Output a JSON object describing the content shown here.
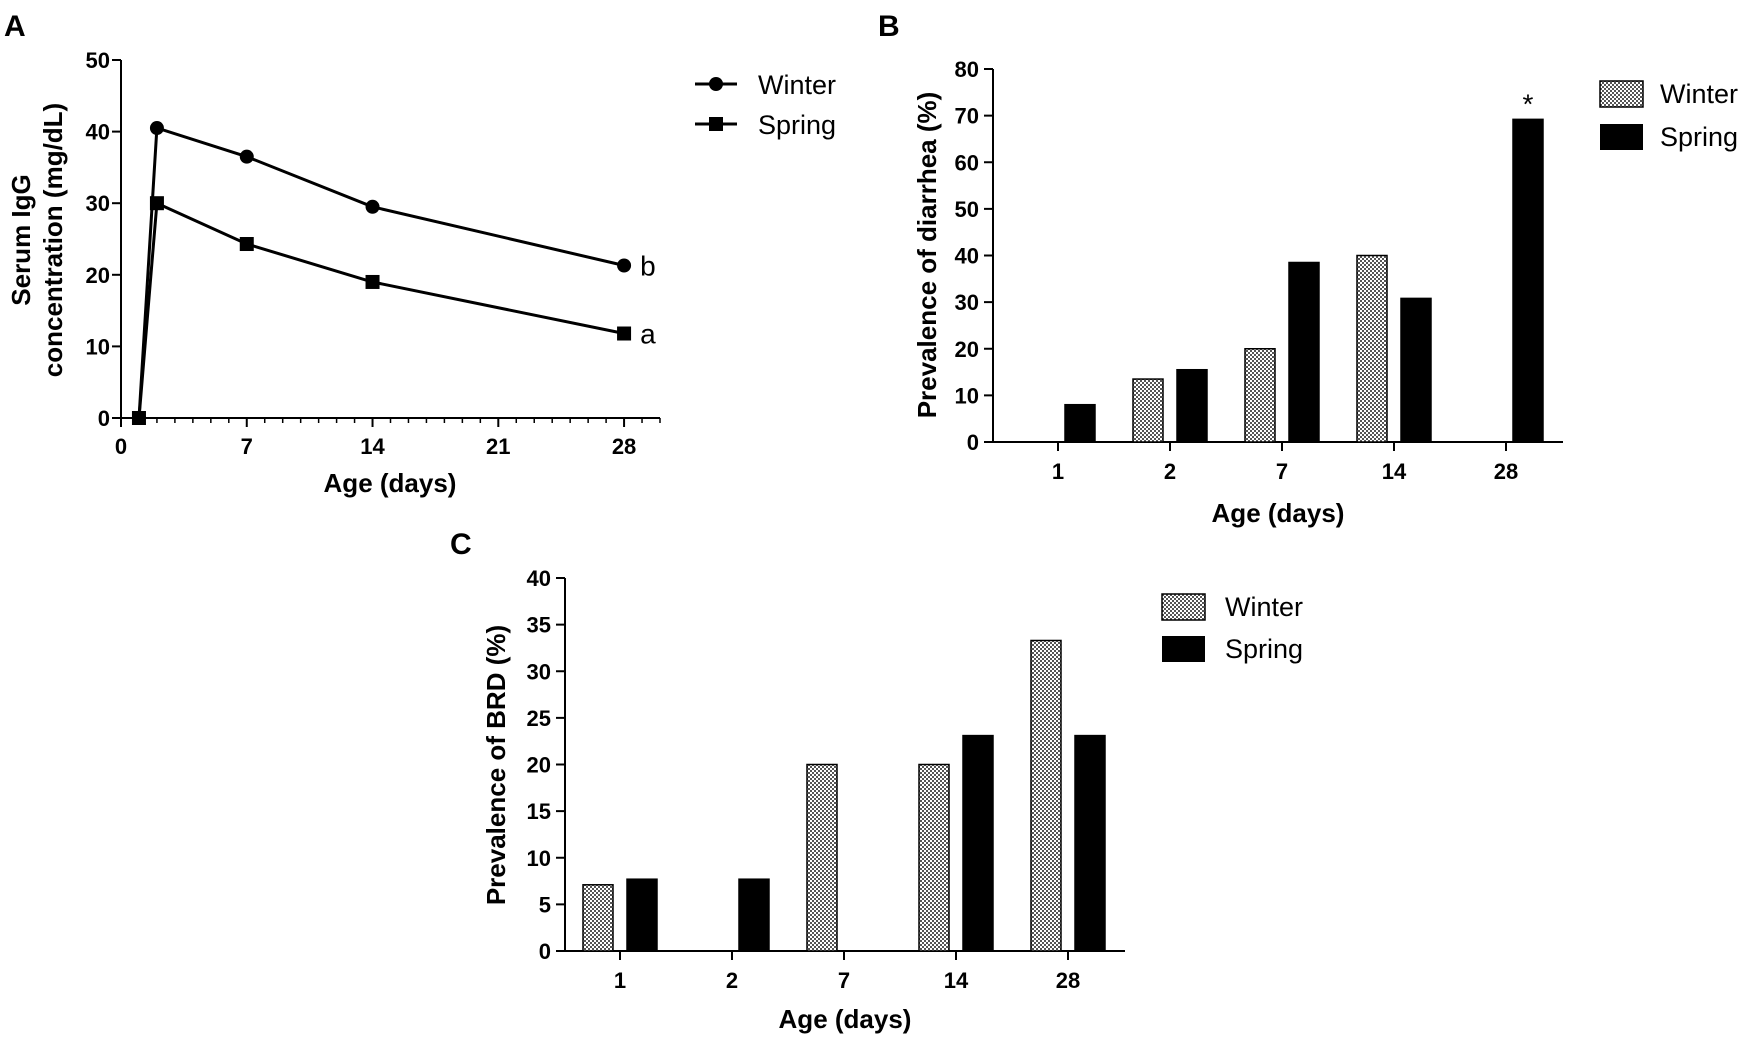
{
  "panels": {
    "A": {
      "letter": "A"
    },
    "B": {
      "letter": "B"
    },
    "C": {
      "letter": "C"
    }
  },
  "colors": {
    "winter": "#c8c8c8",
    "spring": "#000000",
    "axis": "#000000"
  },
  "chart_data": [
    {
      "panel": "A",
      "type": "line",
      "title": "",
      "xlabel": "Age (days)",
      "ylabel_lines": [
        "Serum IgG",
        "concentration (mg/dL)"
      ],
      "xlim": [
        0,
        30
      ],
      "ylim": [
        0,
        50
      ],
      "xticks": [
        0,
        7,
        14,
        21,
        28
      ],
      "yticks": [
        0,
        10,
        20,
        30,
        40,
        50
      ],
      "x": [
        1,
        2,
        7,
        14,
        28
      ],
      "series": [
        {
          "name": "Winter",
          "marker": "circle",
          "values": [
            0,
            40.5,
            36.5,
            29.5,
            21.3
          ],
          "end_label": "b"
        },
        {
          "name": "Spring",
          "marker": "square",
          "values": [
            0,
            30,
            24.3,
            19,
            11.8
          ],
          "end_label": "a"
        }
      ],
      "legend": "top-right"
    },
    {
      "panel": "B",
      "type": "bar",
      "title": "",
      "xlabel": "Age (days)",
      "ylabel": "Prevalence of diarrhea (%)",
      "ylim": [
        0,
        80
      ],
      "yticks": [
        0,
        10,
        20,
        30,
        40,
        50,
        60,
        70,
        80
      ],
      "categories": [
        "1",
        "2",
        "7",
        "14",
        "28"
      ],
      "series": [
        {
          "name": "Winter",
          "pattern": "checker",
          "values": [
            0,
            13.5,
            20,
            40,
            0
          ]
        },
        {
          "name": "Spring",
          "pattern": "solid",
          "values": [
            8,
            15.5,
            38.5,
            30.8,
            69.2
          ]
        }
      ],
      "annotations": [
        {
          "category": "28",
          "series": "Spring",
          "text": "*"
        }
      ],
      "legend": "top-right"
    },
    {
      "panel": "C",
      "type": "bar",
      "title": "",
      "xlabel": "Age (days)",
      "ylabel": "Prevalence of BRD (%)",
      "ylim": [
        0,
        40
      ],
      "yticks": [
        0,
        5,
        10,
        15,
        20,
        25,
        30,
        35,
        40
      ],
      "categories": [
        "1",
        "2",
        "7",
        "14",
        "28"
      ],
      "series": [
        {
          "name": "Winter",
          "pattern": "checker",
          "values": [
            7.1,
            0,
            20,
            20,
            33.3
          ]
        },
        {
          "name": "Spring",
          "pattern": "solid",
          "values": [
            7.7,
            7.7,
            0,
            23.1,
            23.1
          ]
        }
      ],
      "legend": "top-right"
    }
  ]
}
